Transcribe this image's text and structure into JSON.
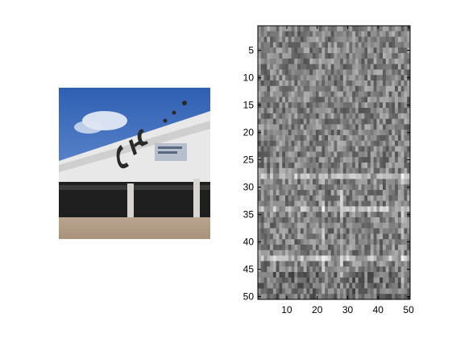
{
  "figure": {
    "background": "#ffffff"
  },
  "chart_data": [
    {
      "type": "image",
      "description_role": "photo-panel",
      "axes_visible": false
    },
    {
      "type": "heatmap",
      "colormap": "gray",
      "grid": false,
      "x_ticks": [
        10,
        20,
        30,
        40,
        50
      ],
      "y_ticks": [
        5,
        10,
        15,
        20,
        25,
        30,
        35,
        40,
        45,
        50
      ],
      "xlim": [
        0.5,
        50.5
      ],
      "ylim": [
        50.5,
        0.5
      ],
      "y_direction": "reverse",
      "rows": 50,
      "cols": 50,
      "bright_row_bands": [
        28,
        34,
        43
      ],
      "bright_col_bands": [
        22,
        28,
        48
      ]
    }
  ]
}
